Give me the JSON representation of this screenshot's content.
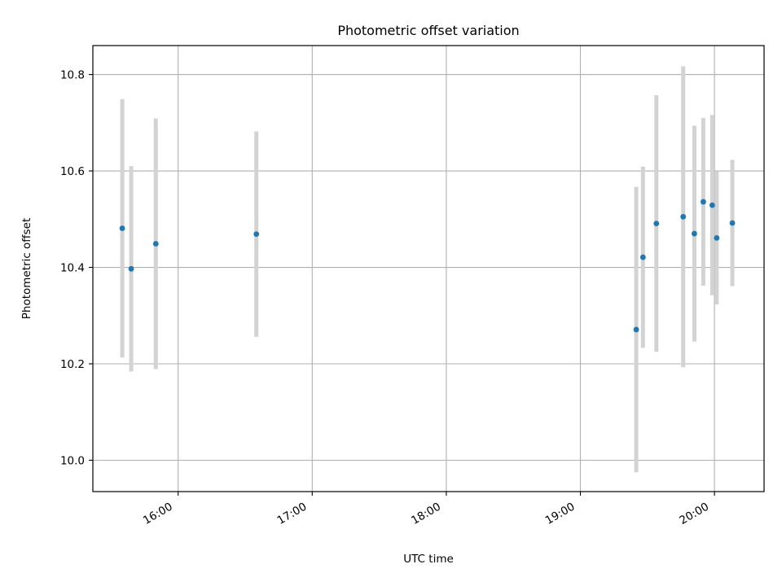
{
  "chart_data": {
    "type": "scatter",
    "title": "Photometric offset variation",
    "xlabel": "UTC time",
    "ylabel": "Photometric offset",
    "x_ticks": [
      "16:00",
      "17:00",
      "18:00",
      "19:00",
      "20:00"
    ],
    "x_tick_hours": [
      16,
      17,
      18,
      19,
      20
    ],
    "xlim_hours": [
      15.364,
      20.37
    ],
    "y_ticks": [
      "10.0",
      "10.2",
      "10.4",
      "10.6",
      "10.8"
    ],
    "y_tick_values": [
      10.0,
      10.2,
      10.4,
      10.6,
      10.8
    ],
    "ylim": [
      9.935,
      10.86
    ],
    "grid": true,
    "series": [
      {
        "name": "",
        "marker_color": "#1f77b4",
        "errorbar_color": "#d3d3d3",
        "points": [
          {
            "time": "15:35",
            "y": 10.481,
            "err": 0.268
          },
          {
            "time": "15:39",
            "y": 10.397,
            "err": 0.213
          },
          {
            "time": "15:50",
            "y": 10.449,
            "err": 0.26
          },
          {
            "time": "16:35",
            "y": 10.469,
            "err": 0.213
          },
          {
            "time": "19:25",
            "y": 10.271,
            "err": 0.296
          },
          {
            "time": "19:28",
            "y": 10.421,
            "err": 0.188
          },
          {
            "time": "19:34",
            "y": 10.491,
            "err": 0.266
          },
          {
            "time": "19:46",
            "y": 10.505,
            "err": 0.312
          },
          {
            "time": "19:51",
            "y": 10.47,
            "err": 0.224
          },
          {
            "time": "19:55",
            "y": 10.536,
            "err": 0.174
          },
          {
            "time": "19:59",
            "y": 10.529,
            "err": 0.187
          },
          {
            "time": "20:01",
            "y": 10.461,
            "err": 0.138
          },
          {
            "time": "20:08",
            "y": 10.492,
            "err": 0.131
          }
        ]
      }
    ]
  }
}
